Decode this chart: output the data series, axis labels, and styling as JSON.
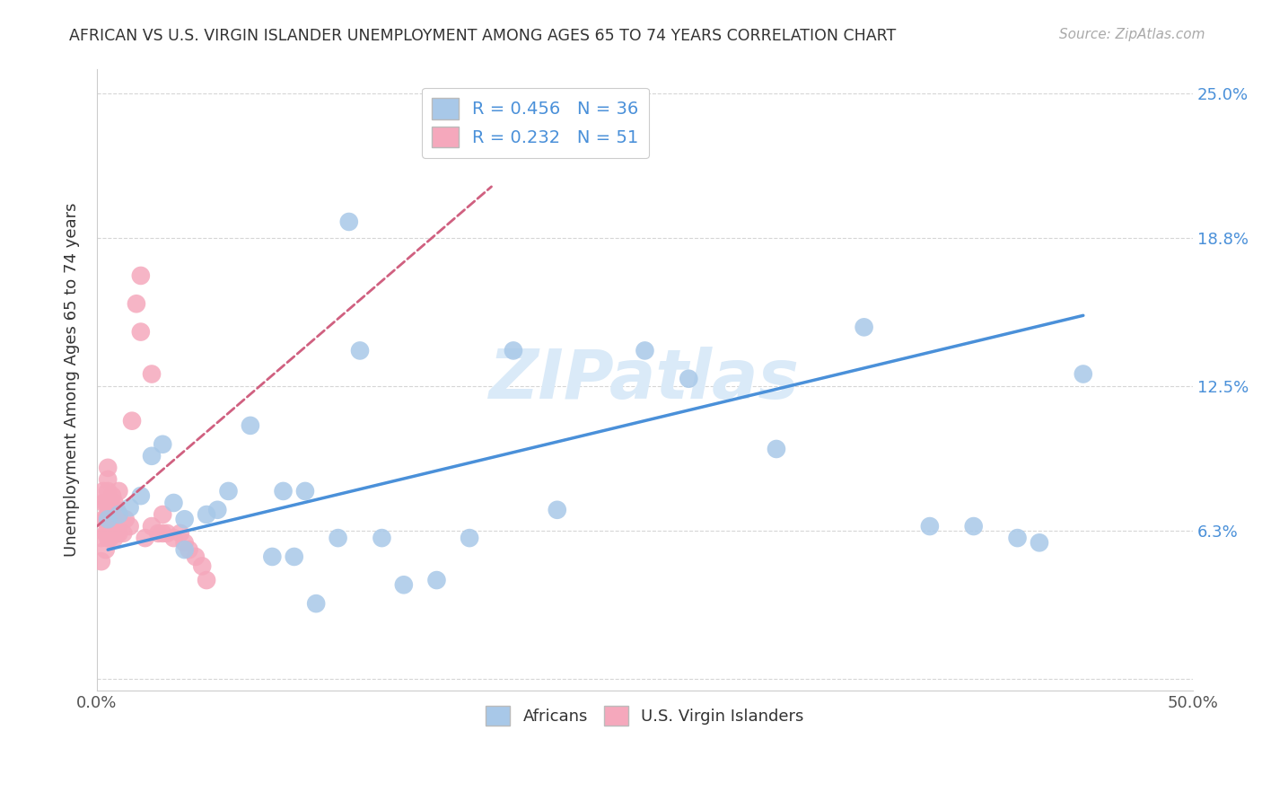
{
  "title": "AFRICAN VS U.S. VIRGIN ISLANDER UNEMPLOYMENT AMONG AGES 65 TO 74 YEARS CORRELATION CHART",
  "source": "Source: ZipAtlas.com",
  "ylabel": "Unemployment Among Ages 65 to 74 years",
  "xlim": [
    0.0,
    0.5
  ],
  "ylim": [
    -0.005,
    0.26
  ],
  "plot_ylim": [
    0.0,
    0.25
  ],
  "xtick_positions": [
    0.0,
    0.1,
    0.2,
    0.3,
    0.4,
    0.5
  ],
  "xticklabels": [
    "0.0%",
    "",
    "",
    "",
    "",
    "50.0%"
  ],
  "ytick_positions": [
    0.0,
    0.063,
    0.125,
    0.188,
    0.25
  ],
  "yticklabels_right": [
    "",
    "6.3%",
    "12.5%",
    "18.8%",
    "25.0%"
  ],
  "african_R": 0.456,
  "african_N": 36,
  "virgin_R": 0.232,
  "virgin_N": 51,
  "african_color": "#a8c8e8",
  "virgin_color": "#f5a8bc",
  "african_line_color": "#4a90d9",
  "virgin_line_color": "#d06080",
  "african_line_x": [
    0.005,
    0.45
  ],
  "african_line_y": [
    0.055,
    0.155
  ],
  "virgin_line_x": [
    0.0,
    0.18
  ],
  "virgin_line_y": [
    0.065,
    0.21
  ],
  "african_x": [
    0.005,
    0.01,
    0.015,
    0.02,
    0.025,
    0.03,
    0.035,
    0.04,
    0.04,
    0.05,
    0.055,
    0.06,
    0.07,
    0.08,
    0.085,
    0.09,
    0.095,
    0.1,
    0.11,
    0.115,
    0.12,
    0.13,
    0.14,
    0.155,
    0.17,
    0.19,
    0.21,
    0.25,
    0.27,
    0.31,
    0.35,
    0.38,
    0.4,
    0.42,
    0.43,
    0.45
  ],
  "african_y": [
    0.068,
    0.07,
    0.073,
    0.078,
    0.095,
    0.1,
    0.075,
    0.068,
    0.055,
    0.07,
    0.072,
    0.08,
    0.108,
    0.052,
    0.08,
    0.052,
    0.08,
    0.032,
    0.06,
    0.195,
    0.14,
    0.06,
    0.04,
    0.042,
    0.06,
    0.14,
    0.072,
    0.14,
    0.128,
    0.098,
    0.15,
    0.065,
    0.065,
    0.06,
    0.058,
    0.13
  ],
  "virgin_x": [
    0.002,
    0.002,
    0.003,
    0.003,
    0.003,
    0.004,
    0.004,
    0.004,
    0.004,
    0.005,
    0.005,
    0.005,
    0.005,
    0.005,
    0.005,
    0.005,
    0.006,
    0.006,
    0.006,
    0.007,
    0.007,
    0.007,
    0.008,
    0.008,
    0.008,
    0.009,
    0.009,
    0.01,
    0.01,
    0.01,
    0.012,
    0.013,
    0.015,
    0.016,
    0.018,
    0.02,
    0.02,
    0.022,
    0.025,
    0.025,
    0.028,
    0.03,
    0.03,
    0.032,
    0.035,
    0.038,
    0.04,
    0.042,
    0.045,
    0.048,
    0.05
  ],
  "virgin_y": [
    0.05,
    0.06,
    0.068,
    0.075,
    0.08,
    0.055,
    0.062,
    0.068,
    0.075,
    0.06,
    0.065,
    0.07,
    0.075,
    0.08,
    0.085,
    0.09,
    0.06,
    0.068,
    0.075,
    0.062,
    0.07,
    0.078,
    0.06,
    0.068,
    0.075,
    0.062,
    0.072,
    0.062,
    0.07,
    0.08,
    0.062,
    0.068,
    0.065,
    0.11,
    0.16,
    0.172,
    0.148,
    0.06,
    0.065,
    0.13,
    0.062,
    0.062,
    0.07,
    0.062,
    0.06,
    0.062,
    0.058,
    0.055,
    0.052,
    0.048,
    0.042
  ],
  "background_color": "#ffffff",
  "grid_color": "#cccccc",
  "title_color": "#333333",
  "right_tick_color": "#4a90d9",
  "watermark_color": "#daeaf8",
  "legend_african_label": "Africans",
  "legend_virgin_label": "U.S. Virgin Islanders"
}
